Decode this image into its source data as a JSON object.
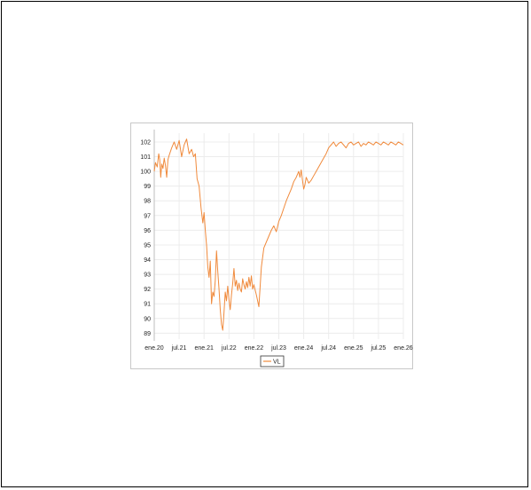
{
  "chart_data": {
    "type": "line",
    "title": "",
    "xlabel": "",
    "ylabel": "",
    "grid": true,
    "legend_placement": "bottom-center",
    "x_ticks": [
      "ene.20",
      "jul.21",
      "ene.21",
      "jul.22",
      "ene.22",
      "jul.23",
      "ene.24",
      "jul.24",
      "ene.25",
      "jul.25",
      "ene.26"
    ],
    "y_ticks": [
      89,
      90,
      91,
      92,
      93,
      94,
      95,
      96,
      97,
      98,
      99,
      100,
      101,
      102
    ],
    "ylim": [
      88.6,
      102.6
    ],
    "x_range_ticks": [
      0,
      10
    ],
    "series": [
      {
        "name": "VL",
        "color": "#f08a3c",
        "x": [
          0.0,
          0.05,
          0.12,
          0.18,
          0.22,
          0.26,
          0.3,
          0.35,
          0.4,
          0.45,
          0.5,
          0.55,
          0.6,
          0.7,
          0.8,
          0.9,
          1.0,
          1.1,
          1.2,
          1.3,
          1.4,
          1.5,
          1.58,
          1.65,
          1.72,
          1.8,
          1.88,
          1.95,
          2.0,
          2.05,
          2.1,
          2.15,
          2.2,
          2.25,
          2.3,
          2.35,
          2.4,
          2.45,
          2.5,
          2.55,
          2.6,
          2.65,
          2.7,
          2.75,
          2.8,
          2.85,
          2.9,
          2.95,
          3.0,
          3.05,
          3.1,
          3.15,
          3.2,
          3.25,
          3.3,
          3.35,
          3.4,
          3.45,
          3.5,
          3.55,
          3.6,
          3.65,
          3.7,
          3.75,
          3.8,
          3.85,
          3.9,
          3.95,
          4.0,
          4.1,
          4.2,
          4.3,
          4.4,
          4.5,
          4.6,
          4.7,
          4.8,
          4.9,
          5.0,
          5.1,
          5.2,
          5.3,
          5.4,
          5.5,
          5.6,
          5.7,
          5.8,
          5.85,
          5.9,
          5.95,
          6.0,
          6.05,
          6.1,
          6.2,
          6.3,
          6.4,
          6.5,
          6.6,
          6.7,
          6.8,
          6.9,
          7.0,
          7.1,
          7.2,
          7.3,
          7.4,
          7.5,
          7.6,
          7.7,
          7.8,
          7.9,
          8.0,
          8.1,
          8.2,
          8.3,
          8.4,
          8.5,
          8.6,
          8.7,
          8.8,
          8.9,
          9.0,
          9.1,
          9.2,
          9.3,
          9.4,
          9.5,
          9.6,
          9.7,
          9.8,
          9.9,
          10.0
        ],
        "y": [
          100.0,
          100.6,
          100.3,
          101.2,
          100.8,
          99.6,
          100.5,
          100.2,
          100.9,
          100.4,
          99.6,
          100.8,
          101.1,
          101.6,
          102.0,
          101.5,
          102.1,
          101.0,
          101.8,
          102.2,
          101.2,
          101.5,
          101.0,
          101.2,
          99.5,
          99.0,
          97.5,
          96.5,
          97.2,
          96.0,
          95.0,
          93.5,
          92.8,
          93.9,
          91.0,
          91.8,
          91.5,
          92.6,
          94.6,
          93.2,
          92.0,
          90.6,
          89.6,
          89.2,
          90.4,
          91.8,
          91.2,
          92.2,
          91.3,
          90.6,
          91.6,
          92.4,
          93.4,
          92.2,
          92.6,
          91.9,
          92.4,
          92.0,
          91.8,
          92.7,
          92.3,
          92.0,
          92.5,
          92.1,
          92.8,
          92.2,
          92.9,
          92.0,
          92.3,
          91.6,
          90.8,
          93.5,
          94.8,
          95.2,
          95.6,
          96.0,
          96.3,
          95.9,
          96.6,
          97.0,
          97.5,
          98.0,
          98.4,
          98.8,
          99.3,
          99.6,
          100.0,
          99.6,
          100.1,
          99.4,
          98.8,
          99.1,
          99.6,
          99.2,
          99.4,
          99.7,
          100.0,
          100.3,
          100.6,
          100.9,
          101.2,
          101.6,
          101.8,
          102.0,
          101.7,
          101.9,
          102.0,
          101.8,
          101.6,
          101.9,
          102.0,
          101.8,
          101.9,
          102.0,
          101.7,
          101.9,
          101.8,
          102.0,
          101.9,
          101.8,
          102.0,
          101.9,
          101.8,
          102.0,
          101.9,
          101.8,
          102.0,
          101.9,
          101.8,
          102.0,
          101.9,
          101.8
        ]
      }
    ]
  }
}
